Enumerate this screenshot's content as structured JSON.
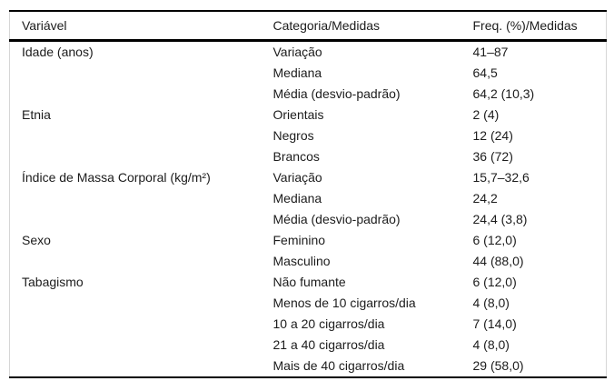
{
  "table": {
    "columns": [
      "Variável",
      "Categoria/Medidas",
      "Freq. (%)/Medidas"
    ],
    "rows": [
      {
        "variavel": "Idade (anos)",
        "categoria": "Variação",
        "freq": "41–87"
      },
      {
        "variavel": "",
        "categoria": "Mediana",
        "freq": "64,5"
      },
      {
        "variavel": "",
        "categoria": "Média (desvio-padrão)",
        "freq": "64,2 (10,3)"
      },
      {
        "variavel": "Etnia",
        "categoria": "Orientais",
        "freq": "2 (4)"
      },
      {
        "variavel": "",
        "categoria": "Negros",
        "freq": "12 (24)"
      },
      {
        "variavel": "",
        "categoria": "Brancos",
        "freq": "36 (72)"
      },
      {
        "variavel": "Índice de Massa Corporal (kg/m²)",
        "categoria": "Variação",
        "freq": "15,7–32,6"
      },
      {
        "variavel": "",
        "categoria": "Mediana",
        "freq": "24,2"
      },
      {
        "variavel": "",
        "categoria": "Média (desvio-padrão)",
        "freq": "24,4 (3,8)"
      },
      {
        "variavel": "Sexo",
        "categoria": "Feminino",
        "freq": "6 (12,0)"
      },
      {
        "variavel": "",
        "categoria": "Masculino",
        "freq": "44 (88,0)"
      },
      {
        "variavel": "Tabagismo",
        "categoria": "Não fumante",
        "freq": "6 (12,0)"
      },
      {
        "variavel": "",
        "categoria": "Menos de 10 cigarros/dia",
        "freq": "4 (8,0)"
      },
      {
        "variavel": "",
        "categoria": "10 a 20 cigarros/dia",
        "freq": "7 (14,0)"
      },
      {
        "variavel": "",
        "categoria": "21 a 40 cigarros/dia",
        "freq": "4 (8,0)"
      },
      {
        "variavel": "",
        "categoria": "Mais de 40 cigarros/dia",
        "freq": "29 (58,0)"
      }
    ]
  },
  "colors": {
    "rule": "#000000",
    "side_border": "#d6d6d6",
    "text": "#1c1c1c",
    "background": "#ffffff"
  }
}
